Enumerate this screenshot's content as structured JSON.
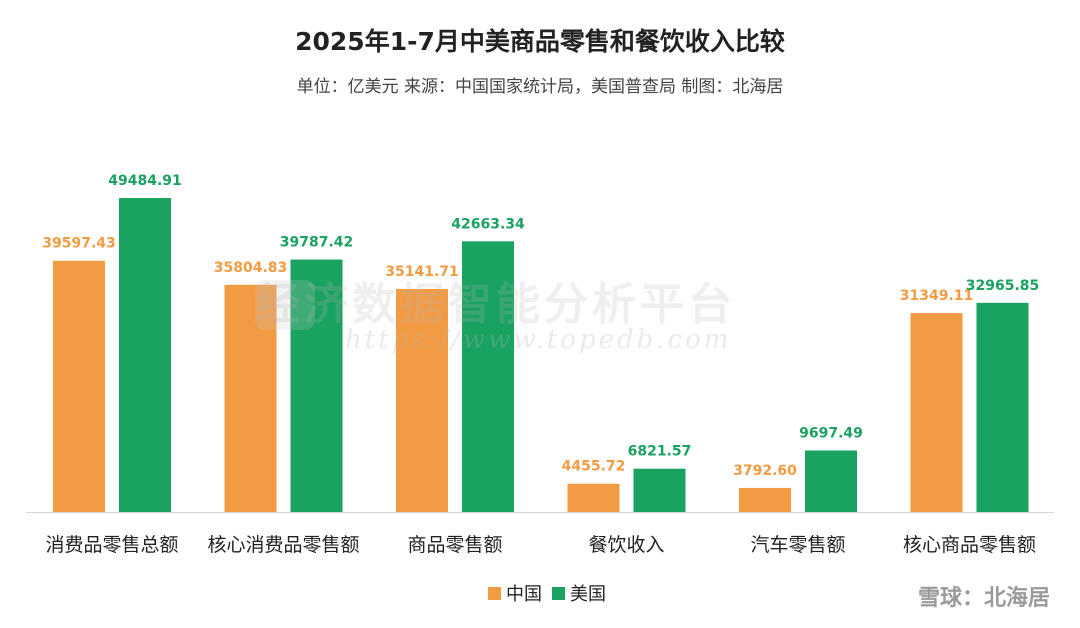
{
  "chart_data": {
    "type": "bar",
    "title": "2025年1-7月中美商品零售和餐饮收入比较",
    "subtitle": "单位：亿美元  来源：中国国家统计局，美国普查局  制图：北海居",
    "categories": [
      "消费品零售总额",
      "核心消费品零售额",
      "商品零售额",
      "餐饮收入",
      "汽车零售额",
      "核心商品零售额"
    ],
    "series": [
      {
        "name": "中国",
        "color": "#F39B42",
        "values": [
          39597.43,
          35804.83,
          35141.71,
          4455.72,
          3792.6,
          31349.11
        ],
        "labels": [
          "39597.43",
          "35804.83",
          "35141.71",
          "4455.72",
          "3792.60",
          "31349.11"
        ]
      },
      {
        "name": "美国",
        "color": "#1AA260",
        "values": [
          49484.91,
          39787.42,
          42663.34,
          6821.57,
          9697.49,
          32965.85
        ],
        "labels": [
          "49484.91",
          "39787.42",
          "42663.34",
          "6821.57",
          "9697.49",
          "32965.85"
        ]
      }
    ],
    "ylim": [
      0,
      49484.91
    ],
    "grid": false,
    "legend": "bottom-center",
    "xlabel": "",
    "ylabel": ""
  },
  "watermark": {
    "text": "经济数据智能分析平台",
    "url": "https://www.topedb.com"
  },
  "corner_mark": "雪球：北海居"
}
